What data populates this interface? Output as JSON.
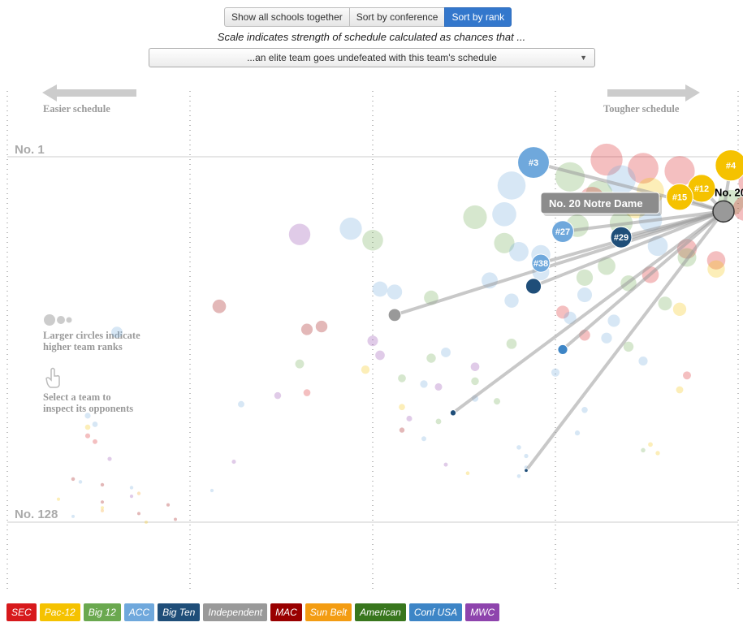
{
  "controls": {
    "buttons": [
      {
        "label": "Show all schools together",
        "active": false
      },
      {
        "label": "Sort by conference",
        "active": false
      },
      {
        "label": "Sort by rank",
        "active": true
      }
    ]
  },
  "caption": "Scale indicates strength of schedule calculated as chances that ...",
  "scale_select": {
    "value": "...an elite team goes undefeated with this team's schedule"
  },
  "hints": {
    "easier": "Easier schedule",
    "tougher": "Tougher schedule",
    "size_line1": "Larger circles indicate",
    "size_line2": "higher team ranks",
    "select_line1": "Select a team to",
    "select_line2": "inspect its opponents"
  },
  "colors": {
    "SEC": "#d7191c",
    "Pac-12": "#f5c200",
    "Big 12": "#6aa84f",
    "ACC": "#6fa8dc",
    "Big Ten": "#1f4e79",
    "Independent": "#999999",
    "MAC": "#990000",
    "Sun Belt": "#f39c12",
    "American": "#38761d",
    "Conf USA": "#3d85c6",
    "MWC": "#8e44ad"
  },
  "legend": [
    "SEC",
    "Pac-12",
    "Big 12",
    "ACC",
    "Big Ten",
    "Independent",
    "MAC",
    "Sun Belt",
    "American",
    "Conf USA",
    "MWC"
  ],
  "tooltip": "No. 20 Notre Dame",
  "chart_data": {
    "type": "scatter",
    "y_axis": {
      "top_label": "No. 1",
      "bottom_label": "No. 128",
      "range": [
        1,
        128
      ]
    },
    "x_axis": {
      "left": "Easier schedule",
      "right": "Tougher schedule"
    },
    "selected": {
      "label": "No. 20 Notre",
      "rank": 20,
      "conf": "Independent",
      "x": 0.98
    },
    "opponents": [
      {
        "label": "#3",
        "rank": 3,
        "conf": "ACC",
        "x": 0.72
      },
      {
        "label": "#4",
        "rank": 4,
        "conf": "Pac-12",
        "x": 0.99
      },
      {
        "label": "#12",
        "rank": 12,
        "conf": "Pac-12",
        "x": 0.95
      },
      {
        "label": "#15",
        "rank": 15,
        "conf": "Pac-12",
        "x": 0.92
      },
      {
        "label": "#27",
        "rank": 27,
        "conf": "ACC",
        "x": 0.76
      },
      {
        "label": "#29",
        "rank": 29,
        "conf": "Big Ten",
        "x": 0.84
      },
      {
        "label": "#38",
        "rank": 38,
        "conf": "ACC",
        "x": 0.73
      },
      {
        "label": "",
        "rank": 46,
        "conf": "Big Ten",
        "x": 0.72
      },
      {
        "label": "",
        "rank": 56,
        "conf": "Independent",
        "x": 0.53
      },
      {
        "label": "",
        "rank": 68,
        "conf": "Conf USA",
        "x": 0.76
      },
      {
        "label": "",
        "rank": 90,
        "conf": "Big Ten",
        "x": 0.61
      },
      {
        "label": "",
        "rank": 110,
        "conf": "Big Ten",
        "x": 0.71
      }
    ],
    "others": [
      {
        "rank": 2,
        "conf": "SEC",
        "x": 0.82
      },
      {
        "rank": 5,
        "conf": "SEC",
        "x": 0.87
      },
      {
        "rank": 6,
        "conf": "SEC",
        "x": 0.92
      },
      {
        "rank": 8,
        "conf": "Big 12",
        "x": 0.77
      },
      {
        "rank": 9,
        "conf": "ACC",
        "x": 0.84
      },
      {
        "rank": 10,
        "conf": "SEC",
        "x": 1.02
      },
      {
        "rank": 11,
        "conf": "ACC",
        "x": 0.69
      },
      {
        "rank": 13,
        "conf": "Pac-12",
        "x": 0.88
      },
      {
        "rank": 14,
        "conf": "Big 12",
        "x": 0.81
      },
      {
        "rank": 16,
        "conf": "SEC",
        "x": 0.8
      },
      {
        "rank": 17,
        "conf": "Big 12",
        "x": 0.99
      },
      {
        "rank": 18,
        "conf": "Pac-12",
        "x": 0.86
      },
      {
        "rank": 19,
        "conf": "SEC",
        "x": 1.01
      },
      {
        "rank": 21,
        "conf": "ACC",
        "x": 0.68
      },
      {
        "rank": 22,
        "conf": "Big 12",
        "x": 0.64
      },
      {
        "rank": 23,
        "conf": "ACC",
        "x": 0.88
      },
      {
        "rank": 24,
        "conf": "Big 12",
        "x": 0.84
      },
      {
        "rank": 25,
        "conf": "Big 12",
        "x": 0.78
      },
      {
        "rank": 26,
        "conf": "ACC",
        "x": 0.47
      },
      {
        "rank": 28,
        "conf": "MWC",
        "x": 0.4
      },
      {
        "rank": 30,
        "conf": "Big 12",
        "x": 0.5
      },
      {
        "rank": 31,
        "conf": "Big 12",
        "x": 0.68
      },
      {
        "rank": 32,
        "conf": "ACC",
        "x": 0.89
      },
      {
        "rank": 33,
        "conf": "SEC",
        "x": 0.93
      },
      {
        "rank": 34,
        "conf": "ACC",
        "x": 0.7
      },
      {
        "rank": 35,
        "conf": "ACC",
        "x": 0.73
      },
      {
        "rank": 36,
        "conf": "Big 12",
        "x": 0.93
      },
      {
        "rank": 37,
        "conf": "SEC",
        "x": 0.97
      },
      {
        "rank": 39,
        "conf": "Big 12",
        "x": 0.82
      },
      {
        "rank": 40,
        "conf": "Pac-12",
        "x": 0.97
      },
      {
        "rank": 41,
        "conf": "ACC",
        "x": 0.73
      },
      {
        "rank": 42,
        "conf": "SEC",
        "x": 0.88
      },
      {
        "rank": 43,
        "conf": "Big 12",
        "x": 0.79
      },
      {
        "rank": 44,
        "conf": "ACC",
        "x": 0.66
      },
      {
        "rank": 45,
        "conf": "Big 12",
        "x": 0.85
      },
      {
        "rank": 47,
        "conf": "ACC",
        "x": 0.51
      },
      {
        "rank": 48,
        "conf": "ACC",
        "x": 0.53
      },
      {
        "rank": 49,
        "conf": "ACC",
        "x": 0.79
      },
      {
        "rank": 50,
        "conf": "Big 12",
        "x": 0.58
      },
      {
        "rank": 51,
        "conf": "ACC",
        "x": 0.69
      },
      {
        "rank": 52,
        "conf": "Big 12",
        "x": 0.9
      },
      {
        "rank": 53,
        "conf": "MAC",
        "x": 0.29
      },
      {
        "rank": 54,
        "conf": "Pac-12",
        "x": 0.92
      },
      {
        "rank": 55,
        "conf": "SEC",
        "x": 0.76
      },
      {
        "rank": 57,
        "conf": "ACC",
        "x": 0.77
      },
      {
        "rank": 58,
        "conf": "ACC",
        "x": 0.83
      },
      {
        "rank": 60,
        "conf": "MAC",
        "x": 0.43
      },
      {
        "rank": 61,
        "conf": "MAC",
        "x": 0.41
      },
      {
        "rank": 62,
        "conf": "ACC",
        "x": 0.15
      },
      {
        "rank": 63,
        "conf": "SEC",
        "x": 0.79
      },
      {
        "rank": 64,
        "conf": "ACC",
        "x": 0.82
      },
      {
        "rank": 65,
        "conf": "MWC",
        "x": 0.5
      },
      {
        "rank": 66,
        "conf": "Big 12",
        "x": 0.69
      },
      {
        "rank": 67,
        "conf": "Big 12",
        "x": 0.85
      },
      {
        "rank": 69,
        "conf": "ACC",
        "x": 0.6
      },
      {
        "rank": 70,
        "conf": "MWC",
        "x": 0.51
      },
      {
        "rank": 71,
        "conf": "Big 12",
        "x": 0.58
      },
      {
        "rank": 72,
        "conf": "ACC",
        "x": 0.87
      },
      {
        "rank": 73,
        "conf": "Big 12",
        "x": 0.4
      },
      {
        "rank": 74,
        "conf": "MWC",
        "x": 0.64
      },
      {
        "rank": 75,
        "conf": "Pac-12",
        "x": 0.49
      },
      {
        "rank": 76,
        "conf": "ACC",
        "x": 0.75
      },
      {
        "rank": 77,
        "conf": "SEC",
        "x": 0.93
      },
      {
        "rank": 78,
        "conf": "Big 12",
        "x": 0.54
      },
      {
        "rank": 79,
        "conf": "Big 12",
        "x": 0.64
      },
      {
        "rank": 80,
        "conf": "ACC",
        "x": 0.57
      },
      {
        "rank": 81,
        "conf": "MWC",
        "x": 0.59
      },
      {
        "rank": 82,
        "conf": "Pac-12",
        "x": 0.92
      },
      {
        "rank": 83,
        "conf": "SEC",
        "x": 0.41
      },
      {
        "rank": 84,
        "conf": "MWC",
        "x": 0.37
      },
      {
        "rank": 85,
        "conf": "ACC",
        "x": 0.64
      },
      {
        "rank": 86,
        "conf": "Big 12",
        "x": 0.67
      },
      {
        "rank": 87,
        "conf": "ACC",
        "x": 0.32
      },
      {
        "rank": 88,
        "conf": "Pac-12",
        "x": 0.54
      },
      {
        "rank": 89,
        "conf": "ACC",
        "x": 0.79
      },
      {
        "rank": 91,
        "conf": "ACC",
        "x": 0.11
      },
      {
        "rank": 92,
        "conf": "MWC",
        "x": 0.55
      },
      {
        "rank": 93,
        "conf": "Big 12",
        "x": 0.59
      },
      {
        "rank": 94,
        "conf": "ACC",
        "x": 0.12
      },
      {
        "rank": 95,
        "conf": "Pac-12",
        "x": 0.11
      },
      {
        "rank": 96,
        "conf": "MAC",
        "x": 0.54
      },
      {
        "rank": 97,
        "conf": "ACC",
        "x": 0.78
      },
      {
        "rank": 98,
        "conf": "SEC",
        "x": 0.11
      },
      {
        "rank": 99,
        "conf": "ACC",
        "x": 0.57
      },
      {
        "rank": 100,
        "conf": "SEC",
        "x": 0.12
      },
      {
        "rank": 101,
        "conf": "Pac-12",
        "x": 0.88
      },
      {
        "rank": 102,
        "conf": "ACC",
        "x": 0.7
      },
      {
        "rank": 103,
        "conf": "Big 12",
        "x": 0.87
      },
      {
        "rank": 104,
        "conf": "Pac-12",
        "x": 0.89
      },
      {
        "rank": 105,
        "conf": "ACC",
        "x": 0.71
      },
      {
        "rank": 106,
        "conf": "MWC",
        "x": 0.14
      },
      {
        "rank": 107,
        "conf": "MWC",
        "x": 0.31
      },
      {
        "rank": 108,
        "conf": "MWC",
        "x": 0.6
      },
      {
        "rank": 109,
        "conf": "ACC",
        "x": 0.71
      },
      {
        "rank": 111,
        "conf": "Pac-12",
        "x": 0.63
      },
      {
        "rank": 112,
        "conf": "ACC",
        "x": 0.7
      },
      {
        "rank": 113,
        "conf": "MAC",
        "x": 0.09
      },
      {
        "rank": 114,
        "conf": "ACC",
        "x": 0.1
      },
      {
        "rank": 115,
        "conf": "MAC",
        "x": 0.13
      },
      {
        "rank": 116,
        "conf": "ACC",
        "x": 0.17
      },
      {
        "rank": 117,
        "conf": "ACC",
        "x": 0.28
      },
      {
        "rank": 118,
        "conf": "Sun Belt",
        "x": 0.18
      },
      {
        "rank": 119,
        "conf": "MWC",
        "x": 0.17
      },
      {
        "rank": 120,
        "conf": "Pac-12",
        "x": 0.07
      },
      {
        "rank": 121,
        "conf": "MAC",
        "x": 0.13
      },
      {
        "rank": 122,
        "conf": "MAC",
        "x": 0.22
      },
      {
        "rank": 123,
        "conf": "Pac-12",
        "x": 0.13
      },
      {
        "rank": 124,
        "conf": "Sun Belt",
        "x": 0.13
      },
      {
        "rank": 125,
        "conf": "MAC",
        "x": 0.18
      },
      {
        "rank": 126,
        "conf": "ACC",
        "x": 0.09
      },
      {
        "rank": 127,
        "conf": "MAC",
        "x": 0.23
      },
      {
        "rank": 128,
        "conf": "Pac-12",
        "x": 0.19
      }
    ]
  }
}
